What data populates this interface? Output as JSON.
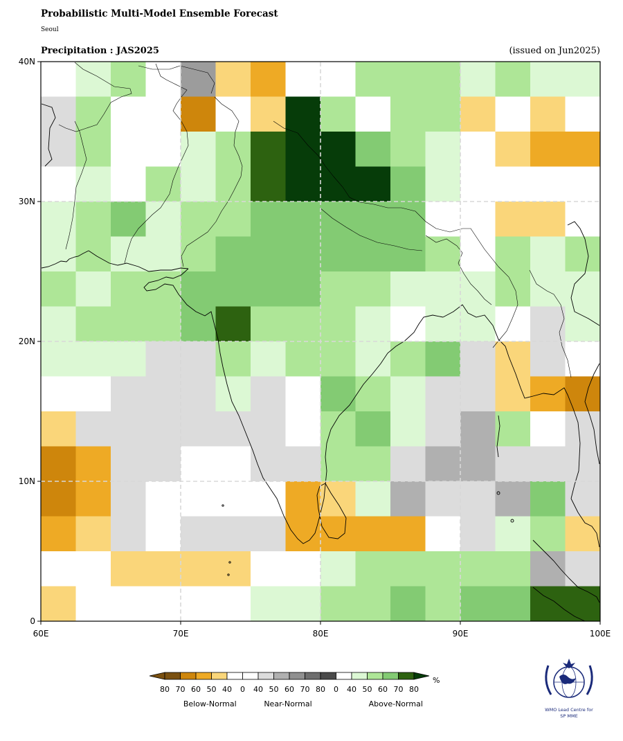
{
  "header": {
    "title": "Probabilistic Multi-Model Ensemble Forecast",
    "location": "Seoul",
    "variable": "Precipitation : JAS2025",
    "issued": "(issued on Jun2025)"
  },
  "map": {
    "lon_range": [
      60,
      100
    ],
    "lat_range": [
      0,
      40
    ],
    "x_ticks": [
      "60E",
      "70E",
      "80E",
      "90E",
      "100E"
    ],
    "y_ticks": [
      "0",
      "10N",
      "20N",
      "30N",
      "40N"
    ],
    "grid_lines": "dashed light gray every 10 degrees",
    "cell_size_deg": 2.5,
    "category_colors": {
      "w": "#ffffff",
      "B80": "#ce860c",
      "B70": "#ce860c",
      "B60": "#eeaa25",
      "B50": "#fad67a",
      "B40": "#fad67a",
      "N40": "#dcdcdc",
      "N50": "#b0b0b0",
      "N60": "#9c9c9c",
      "A40": "#dcf8d4",
      "A50": "#aee697",
      "A60": "#83cb73",
      "A70": "#2d6210",
      "A80": "#063c09"
    },
    "grid_rows_north_to_south": [
      "w  A40 A50 w   N60 B50 B60 w   w   A50 A50 A50 A40 A50 A40 A40",
      "N40 A50 w   w   B70 w   B50 A80 A50 w   A50 A50 B50 w   B50 w",
      "N40 A50 w   w   A40 A50 A70 A80 A80 A60 A50 A40 w   B50 B60 B60",
      "w   A40 w   A50 A40 A50 A70 A80 A80 A80 A60 A40 w   w   w   w",
      "A40 A50 A60 A40 A50 A50 A60 A60 A60 A60 A60 w   w   B50 B50 w",
      "A40 A50 A40 A40 A50 A60 A60 A60 A60 A60 A60 A50 w   A50 A40 A50",
      "A50 A40 A50 A50 A60 A60 A60 A60 A50 A50 A40 A40 A40 A50 A40 A40",
      "A40 A50 A50 A50 A60 A70 A50 A50 A50 A40 w   A40 A40 w   N40 A40",
      "A40 A40 A40 N40 N40 A50 A40 A50 A50 A40 A50 A60 N40 B50 N40 w",
      "w   w   N40 N40 N40 A40 N40 w   A60 A50 A40 N40 N40 B50 B60 B70",
      "B50 N40 N40 N40 N40 N40 N40 w   A50 A60 A40 N40 N50 A50 w   N40",
      "B70 B60 N40 N40 w   w   N40 N40 A50 A50 N40 N50 N50 N40 N40 N40",
      "B70 B60 N40 w   w   w   w   B60 B50 A40 N50 N40 N40 N50 A60 N40",
      "B60 B50 N40 w   N40 N40 N40 B60 B60 B60 B60 w   N40 A40 A50 B50",
      "w   w   B50 B50 B50 B50 w   w   A40 A50 A50 A50 A50 A50 N50 N40",
      "B50 w   w   w   w   w   A40 A40 A50 A50 A60 A50 A60 A60 A70 A70"
    ]
  },
  "legend": {
    "unit": "%",
    "swatches": [
      "#7a5010",
      "#ce860c",
      "#eeaa25",
      "#fad67a",
      "#ffffff",
      "#ffffff",
      "#dcdcdc",
      "#b0b0b0",
      "#909090",
      "#6e6e6e",
      "#4a4a4a",
      "#ffffff",
      "#dcf8d4",
      "#aee697",
      "#83cb73",
      "#2d6210"
    ],
    "left_arrow_color": "#7a5010",
    "right_arrow_color": "#063c09",
    "tick_labels": [
      "80",
      "70",
      "60",
      "50",
      "40",
      "0",
      "40",
      "50",
      "60",
      "70",
      "80",
      "0",
      "40",
      "50",
      "60",
      "70",
      "80"
    ],
    "group_labels": [
      "Below-Normal",
      "Near-Normal",
      "Above-Normal"
    ]
  },
  "logo": {
    "caption_line1": "WMO Lead Centre for",
    "caption_line2": "SP MME",
    "color": "#1a2a7a"
  }
}
